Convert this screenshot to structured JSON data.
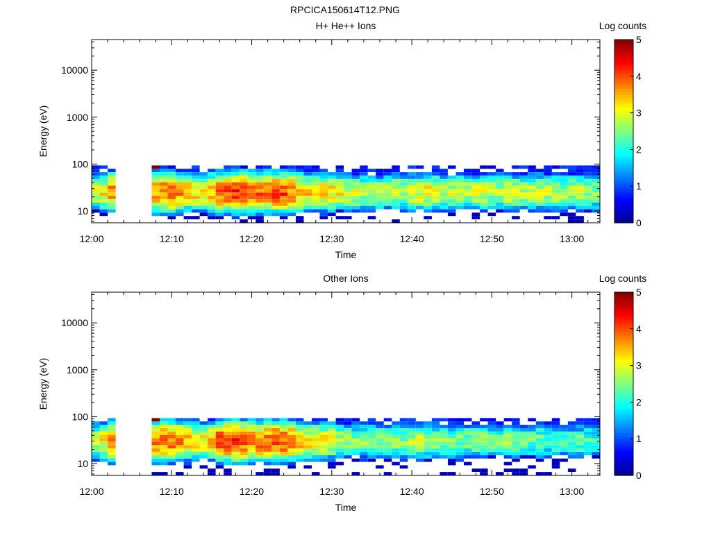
{
  "page_title": "RPCICA150614T12.PNG",
  "colorbar": {
    "label": "Log counts",
    "ticks": [
      "0",
      "1",
      "2",
      "3",
      "4",
      "5"
    ],
    "range": [
      0,
      5
    ],
    "colormap": [
      "#00008f",
      "#0000ff",
      "#0080ff",
      "#00ffff",
      "#80ff80",
      "#ffff00",
      "#ff8000",
      "#ff0000",
      "#800000"
    ]
  },
  "chart_data": [
    {
      "type": "heatmap",
      "title": "H+ He++ Ions",
      "xlabel": "Time",
      "ylabel": "Energy (eV)",
      "x_ticks": [
        "12:00",
        "12:10",
        "12:20",
        "12:30",
        "12:40",
        "12:50",
        "13:00"
      ],
      "y_ticks": [
        "10",
        "100",
        "1000",
        "10000"
      ],
      "y_scale": "log",
      "ylim": [
        5.6,
        45000
      ],
      "xlim_minutes": [
        0,
        63.5
      ],
      "time_bins_minutes": [
        0.0,
        1.0,
        2.0,
        6.5,
        7.5,
        8.5,
        9.5,
        10.5,
        11.5,
        12.5,
        13.5,
        14.5,
        15.5,
        16.5,
        17.5,
        18.5,
        19.5,
        20.5,
        21.5,
        22.5,
        23.5,
        24.5,
        25.5,
        26.5,
        27.5,
        28.5,
        29.5,
        30.5,
        31.5,
        32.5,
        33.5,
        34.5,
        35.5,
        36.5,
        37.5,
        38.5,
        39.5,
        40.5,
        41.5,
        42.5,
        43.5,
        44.5,
        45.5,
        46.5,
        47.5,
        48.5,
        49.5,
        50.5,
        51.5,
        52.5,
        53.5,
        54.5,
        55.5,
        56.5,
        57.5,
        58.5,
        59.5,
        60.5,
        61.5,
        62.5
      ],
      "energy_bins_eV": [
        6.1,
        7.2,
        8.5,
        10.0,
        11.8,
        13.9,
        16.4,
        19.4,
        22.9,
        27.0,
        31.9,
        37.6,
        44.4,
        52.4,
        61.8,
        73.0,
        86.1
      ],
      "base_peak_log": [
        2.9,
        3.1,
        3.6,
        0,
        3.7,
        3.8,
        3.9,
        3.7,
        3.4,
        3.3,
        3.2,
        3.4,
        3.9,
        4.0,
        4.1,
        4.0,
        3.9,
        3.8,
        3.9,
        4.0,
        4.0,
        3.8,
        3.5,
        3.3,
        3.2,
        3.3,
        3.2,
        3.1,
        2.9,
        2.9,
        2.8,
        2.7,
        2.7,
        2.8,
        2.8,
        2.7,
        2.9,
        3.0,
        3.1,
        3.0,
        2.9,
        2.8,
        2.8,
        2.8,
        2.9,
        2.9,
        2.8,
        2.8,
        3.0,
        2.9,
        2.8,
        2.8,
        2.9,
        2.8,
        2.8,
        2.7,
        2.8,
        2.8,
        2.7,
        2.6
      ],
      "peak_energy_eV": 25,
      "mode": "hp"
    },
    {
      "type": "heatmap",
      "title": "Other Ions",
      "xlabel": "Time",
      "ylabel": "Energy (eV)",
      "x_ticks": [
        "12:00",
        "12:10",
        "12:20",
        "12:30",
        "12:40",
        "12:50",
        "13:00"
      ],
      "y_ticks": [
        "10",
        "100",
        "1000",
        "10000"
      ],
      "y_scale": "log",
      "ylim": [
        5.6,
        45000
      ],
      "xlim_minutes": [
        0,
        63.5
      ],
      "time_bins_minutes": [
        0.0,
        1.0,
        2.0,
        6.5,
        7.5,
        8.5,
        9.5,
        10.5,
        11.5,
        12.5,
        13.5,
        14.5,
        15.5,
        16.5,
        17.5,
        18.5,
        19.5,
        20.5,
        21.5,
        22.5,
        23.5,
        24.5,
        25.5,
        26.5,
        27.5,
        28.5,
        29.5,
        30.5,
        31.5,
        32.5,
        33.5,
        34.5,
        35.5,
        36.5,
        37.5,
        38.5,
        39.5,
        40.5,
        41.5,
        42.5,
        43.5,
        44.5,
        45.5,
        46.5,
        47.5,
        48.5,
        49.5,
        50.5,
        51.5,
        52.5,
        53.5,
        54.5,
        55.5,
        56.5,
        57.5,
        58.5,
        59.5,
        60.5,
        61.5,
        62.5
      ],
      "energy_bins_eV": [
        6.1,
        7.2,
        8.5,
        10.0,
        11.8,
        13.9,
        16.4,
        19.4,
        22.9,
        27.0,
        31.9,
        37.6,
        44.4,
        52.4,
        61.8,
        73.0,
        86.1
      ],
      "base_peak_log": [
        2.9,
        3.1,
        3.6,
        0,
        3.7,
        3.8,
        3.9,
        3.7,
        3.4,
        3.3,
        3.2,
        3.4,
        4.0,
        4.1,
        4.1,
        4.0,
        3.9,
        3.8,
        3.9,
        4.0,
        4.0,
        3.8,
        3.5,
        3.2,
        3.1,
        3.1,
        3.0,
        2.8,
        2.7,
        2.6,
        2.6,
        2.5,
        2.5,
        2.6,
        2.6,
        2.5,
        2.7,
        2.8,
        2.7,
        2.6,
        2.5,
        2.5,
        2.5,
        2.5,
        2.6,
        2.5,
        2.4,
        2.4,
        2.5,
        2.4,
        2.4,
        2.3,
        2.4,
        2.3,
        2.3,
        2.2,
        2.3,
        2.3,
        2.2,
        2.1
      ],
      "peak_energy_eV": 30,
      "mode": "other"
    }
  ]
}
